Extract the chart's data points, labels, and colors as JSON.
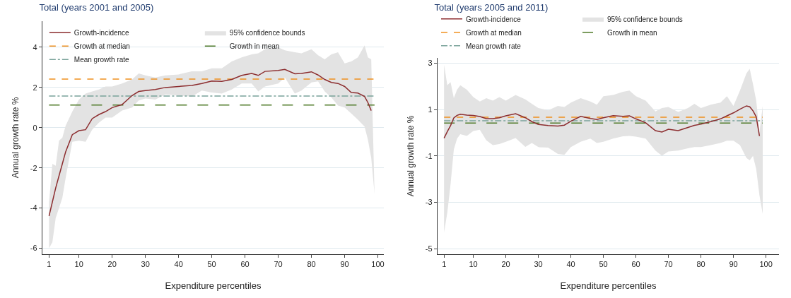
{
  "chart_data": [
    {
      "type": "line",
      "title": "Total (years 2001 and 2005)",
      "xlabel": "Expenditure percentiles",
      "ylabel": "Annual growth rate %",
      "xlim": [
        -1,
        101.8
      ],
      "ylim": [
        -6.3,
        5.3
      ],
      "xticks": [
        1,
        10,
        20,
        30,
        40,
        50,
        60,
        70,
        80,
        90,
        100
      ],
      "yticks": [
        -6,
        -4,
        -2,
        0,
        2,
        4
      ],
      "grid": "y",
      "legend": "top left",
      "annotations": [
        "95% confidence bounds"
      ],
      "series": [
        {
          "name": "Growth-incidence",
          "type": "line",
          "color": "#8c2d2f",
          "line_style": "solid",
          "x": [
            1,
            2,
            3,
            4,
            5,
            6,
            8,
            10,
            12,
            14,
            16,
            18,
            20,
            23,
            26,
            28,
            30,
            33,
            36,
            40,
            44,
            47,
            50,
            53,
            56,
            59,
            62,
            64,
            66,
            70,
            72,
            75,
            77,
            80,
            82,
            84,
            86,
            88,
            90,
            92,
            94,
            96,
            97,
            98,
            99
          ],
          "values": [
            -4.4,
            -3.7,
            -3.0,
            -2.4,
            -1.8,
            -1.2,
            -0.35,
            -0.15,
            -0.1,
            0.45,
            0.65,
            0.8,
            1.0,
            1.15,
            1.6,
            1.8,
            1.85,
            1.9,
            2.0,
            2.05,
            2.1,
            2.2,
            2.32,
            2.3,
            2.4,
            2.6,
            2.7,
            2.6,
            2.8,
            2.85,
            2.9,
            2.68,
            2.7,
            2.78,
            2.62,
            2.4,
            2.25,
            2.2,
            2.05,
            1.75,
            1.72,
            1.55,
            1.25,
            0.85,
            null
          ],
          "lower": [
            -6.0,
            -5.7,
            -4.5,
            -4.0,
            -3.5,
            -2.5,
            -0.7,
            -0.65,
            -0.7,
            -0.1,
            0.25,
            0.5,
            0.5,
            0.85,
            1.0,
            1.35,
            1.45,
            1.4,
            1.65,
            1.6,
            1.55,
            1.85,
            1.75,
            1.7,
            1.9,
            2.2,
            2.2,
            1.8,
            2.05,
            2.2,
            2.5,
            1.7,
            1.85,
            2.25,
            2.3,
            1.8,
            1.5,
            1.1,
            1.0,
            0.7,
            0.4,
            0.05,
            -0.6,
            -1.5,
            -3.3
          ],
          "upper": [
            -3.7,
            -1.8,
            -1.9,
            -0.65,
            -0.5,
            0.1,
            0.8,
            1.4,
            1.7,
            1.8,
            1.9,
            2.05,
            2.05,
            2.2,
            2.4,
            2.7,
            2.6,
            2.5,
            2.6,
            2.65,
            2.8,
            2.8,
            2.95,
            2.95,
            3.3,
            3.5,
            3.65,
            3.7,
            3.9,
            4.0,
            3.85,
            3.75,
            3.7,
            3.9,
            3.6,
            3.4,
            3.65,
            3.75,
            3.2,
            3.3,
            3.5,
            4.1,
            3.5,
            3.4,
            -3.3
          ]
        }
      ],
      "ref_lines": [
        {
          "axis": "y",
          "value": 2.42,
          "label": "Growth at median",
          "color": "#f0901e",
          "line_style": "dotted"
        },
        {
          "axis": "y",
          "value": 1.13,
          "label": "Growth in mean",
          "color": "#4f7a28",
          "line_style": "dashed"
        },
        {
          "axis": "y",
          "value": 1.57,
          "label": "Mean growth rate",
          "color": "#7aa39a",
          "line_style": "dashdot"
        }
      ]
    },
    {
      "type": "line",
      "title": "Total (years 2005 and 2011)",
      "xlabel": "Expenditure percentiles",
      "ylabel": "Annual growth rate %",
      "xlim": [
        -1,
        104
      ],
      "ylim": [
        -5.24,
        3.23
      ],
      "xticks": [
        1,
        10,
        20,
        30,
        40,
        50,
        60,
        70,
        80,
        90,
        100
      ],
      "yticks": [
        -5,
        -3,
        -1,
        1,
        3
      ],
      "grid": "y",
      "legend": "top",
      "annotations": [
        "95% confidence bounds"
      ],
      "series": [
        {
          "name": "Growth-incidence",
          "type": "line",
          "color": "#8c2d2f",
          "line_style": "solid",
          "x": [
            1,
            2,
            3,
            4,
            5,
            6,
            8,
            10,
            12,
            14,
            16,
            18,
            20,
            23,
            26,
            28,
            30,
            33,
            36,
            38,
            40,
            43,
            46,
            48,
            50,
            53,
            56,
            58,
            60,
            63,
            66,
            68,
            70,
            73,
            76,
            78,
            80,
            83,
            86,
            88,
            90,
            92,
            94,
            95,
            96,
            97,
            98,
            99
          ],
          "values": [
            -0.23,
            0.05,
            0.31,
            0.64,
            0.75,
            0.8,
            0.76,
            0.75,
            0.7,
            0.61,
            0.61,
            0.65,
            0.73,
            0.82,
            0.65,
            0.48,
            0.36,
            0.31,
            0.29,
            0.33,
            0.5,
            0.71,
            0.62,
            0.57,
            0.65,
            0.74,
            0.71,
            0.73,
            0.6,
            0.43,
            0.09,
            0.03,
            0.15,
            0.09,
            0.23,
            0.32,
            0.37,
            0.48,
            0.6,
            0.73,
            0.86,
            1.02,
            1.16,
            1.12,
            0.95,
            0.69,
            -0.14,
            null
          ],
          "lower": [
            -4.3,
            -3.44,
            -2.22,
            -0.72,
            -0.25,
            -0.06,
            -0.14,
            0.08,
            0.13,
            -0.33,
            -0.53,
            -0.49,
            -0.39,
            -0.23,
            -0.61,
            -0.44,
            -0.62,
            -0.64,
            -0.91,
            -0.95,
            -0.62,
            -0.39,
            -0.25,
            -0.44,
            -0.39,
            -0.25,
            -0.15,
            -0.14,
            -0.17,
            -0.25,
            -0.77,
            -0.99,
            -0.81,
            -0.77,
            -0.67,
            -0.62,
            -0.62,
            -0.53,
            -0.44,
            -0.34,
            -0.34,
            -0.53,
            -1.09,
            -1.19,
            -1.0,
            -1.57,
            -2.7,
            -3.5
          ],
          "upper": [
            2.94,
            2.05,
            2.19,
            1.49,
            1.86,
            2.05,
            1.86,
            1.54,
            1.35,
            1.49,
            1.39,
            1.54,
            1.39,
            1.63,
            1.44,
            1.25,
            1.07,
            0.97,
            1.16,
            1.11,
            1.3,
            1.49,
            1.35,
            1.21,
            1.58,
            1.63,
            1.77,
            1.82,
            1.58,
            1.39,
            0.92,
            1.07,
            1.11,
            0.9,
            1.07,
            1.25,
            1.07,
            1.21,
            1.3,
            1.58,
            1.16,
            1.82,
            2.57,
            2.76,
            2.1,
            1.39,
            0.03,
            1.16
          ]
        }
      ],
      "ref_lines": [
        {
          "axis": "y",
          "value": 0.67,
          "label": "Growth at median",
          "color": "#f0901e",
          "line_style": "dotted"
        },
        {
          "axis": "y",
          "value": 0.42,
          "label": "Growth in mean",
          "color": "#4f7a28",
          "line_style": "dashed"
        },
        {
          "axis": "y",
          "value": 0.52,
          "label": "Mean growth rate",
          "color": "#7aa39a",
          "line_style": "dashdot"
        }
      ]
    }
  ]
}
